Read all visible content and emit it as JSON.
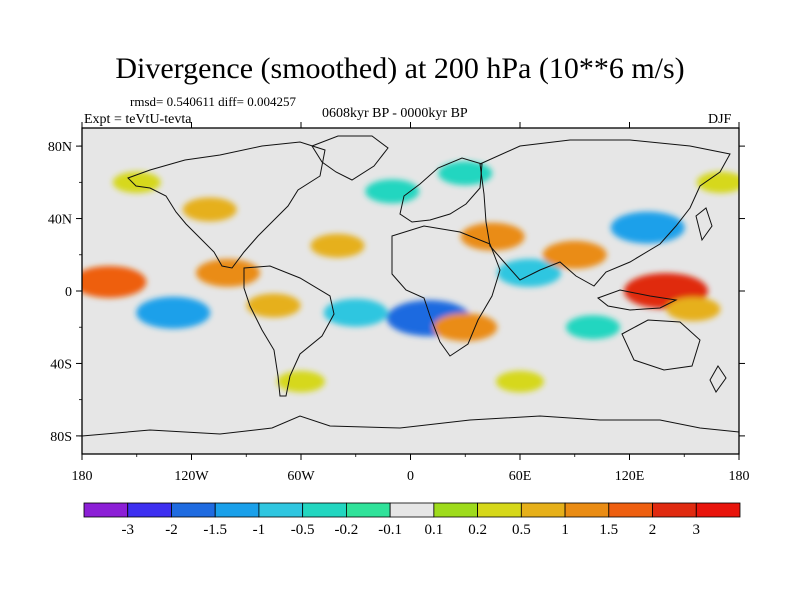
{
  "map": {
    "title": "Divergence (smoothed) at 200 hPa (10**6 m/s)",
    "stats_text": "rmsd= 0.540611  diff= 0.004257",
    "period_text": "0608kyr BP - 0000kyr BP",
    "experiment_text": "Expt = teVtU-tevta",
    "season_text": "DJF",
    "lat_labels": [
      "80N",
      "40N",
      "0",
      "40S",
      "80S"
    ],
    "lon_labels": [
      "180",
      "120W",
      "60W",
      "0",
      "60E",
      "120E",
      "180"
    ],
    "colorbar": {
      "labels": [
        "-3",
        "-2",
        "-1.5",
        "-1",
        "-0.5",
        "-0.2",
        "-0.1",
        "0.1",
        "0.2",
        "0.5",
        "1",
        "1.5",
        "2",
        "3"
      ],
      "colors": [
        "#8c1fd6",
        "#3d2ff0",
        "#1f6be0",
        "#1aa0ea",
        "#2fc6e0",
        "#22d6c0",
        "#30e29a",
        "#e6e6e6",
        "#9edb1c",
        "#d6d81a",
        "#e6b01a",
        "#ea8c14",
        "#ee5f10",
        "#e02a10",
        "#e8140c"
      ]
    },
    "features": [
      {
        "lon": -165,
        "lat": 5,
        "value": 1.5
      },
      {
        "lon": -130,
        "lat": -12,
        "value": -1.5
      },
      {
        "lon": -100,
        "lat": 10,
        "value": 1
      },
      {
        "lon": -75,
        "lat": -8,
        "value": 0.5
      },
      {
        "lon": -40,
        "lat": 25,
        "value": 0.5
      },
      {
        "lon": -30,
        "lat": -12,
        "value": -1
      },
      {
        "lon": -10,
        "lat": 55,
        "value": -0.5
      },
      {
        "lon": 10,
        "lat": -15,
        "value": -2
      },
      {
        "lon": 30,
        "lat": -20,
        "value": 1
      },
      {
        "lon": 45,
        "lat": 30,
        "value": 1
      },
      {
        "lon": 65,
        "lat": 10,
        "value": -1
      },
      {
        "lon": 90,
        "lat": 20,
        "value": 1
      },
      {
        "lon": 130,
        "lat": 35,
        "value": -1.5
      },
      {
        "lon": 140,
        "lat": 0,
        "value": 2
      },
      {
        "lon": 155,
        "lat": -10,
        "value": 0.5
      },
      {
        "lon": 100,
        "lat": -20,
        "value": -0.5
      },
      {
        "lon": -150,
        "lat": 60,
        "value": 0.2
      },
      {
        "lon": 170,
        "lat": 60,
        "value": 0.2
      },
      {
        "lon": -60,
        "lat": -50,
        "value": 0.2
      },
      {
        "lon": 60,
        "lat": -50,
        "value": 0.2
      },
      {
        "lon": -110,
        "lat": 45,
        "value": 0.5
      },
      {
        "lon": 30,
        "lat": 65,
        "value": -0.5
      }
    ]
  }
}
